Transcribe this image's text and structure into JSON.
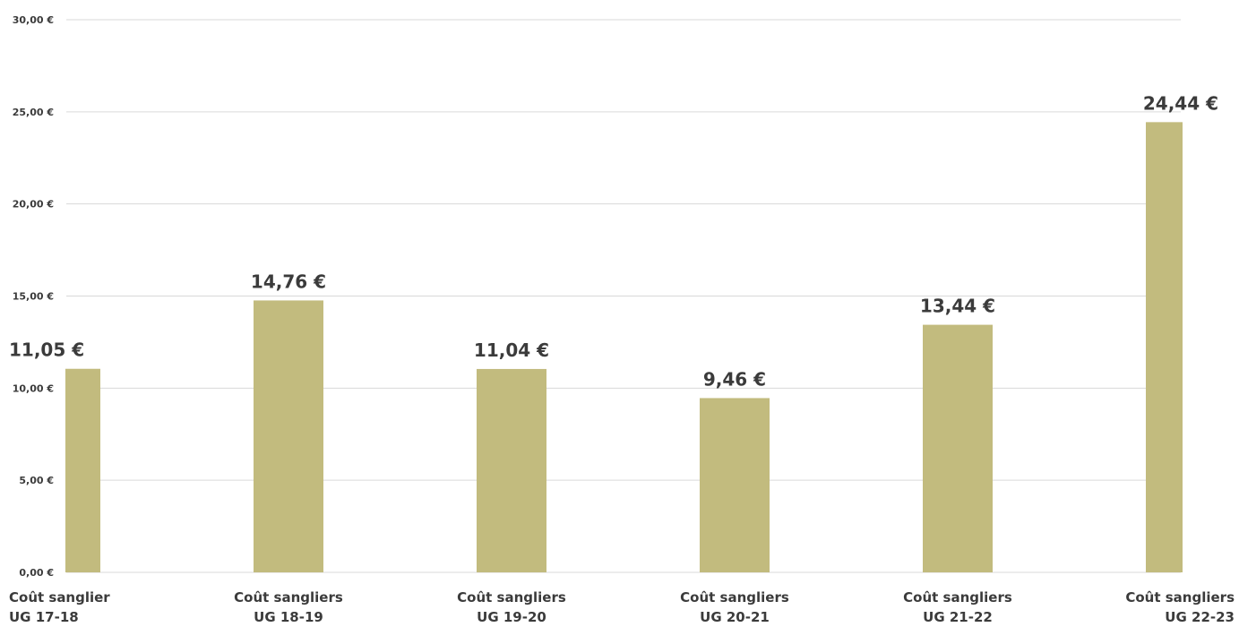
{
  "chart_data": {
    "type": "bar",
    "title": "",
    "xlabel": "",
    "ylabel": "",
    "categories": [
      [
        "Coût sanglier",
        "UG 17-18"
      ],
      [
        "Coût sangliers",
        "UG 18-19"
      ],
      [
        "Coût sangliers",
        "UG 19-20"
      ],
      [
        "Coût sangliers",
        "UG 20-21"
      ],
      [
        "Coût sangliers",
        "UG 21-22"
      ],
      [
        "Coût sangliers",
        "UG 22-23"
      ]
    ],
    "values": [
      11.05,
      14.76,
      11.04,
      9.46,
      13.44,
      24.44
    ],
    "value_labels": [
      "11,05 €",
      "14,76 €",
      "11,04 €",
      "9,46 €",
      "13,44 €",
      "24,44 €"
    ],
    "y_ticks": [
      0,
      5,
      10,
      15,
      20,
      25,
      30
    ],
    "y_tick_labels": [
      "0,00 €",
      "5,00 €",
      "10,00 €",
      "15,00 €",
      "20,00 €",
      "25,00 €",
      "30,00 €"
    ],
    "ylim": [
      0,
      30
    ],
    "grid": true,
    "legend": "none",
    "colors": {
      "bar": "#c2bb7e",
      "grid": "#d9d9d9",
      "text": "#3b3b3b"
    }
  }
}
